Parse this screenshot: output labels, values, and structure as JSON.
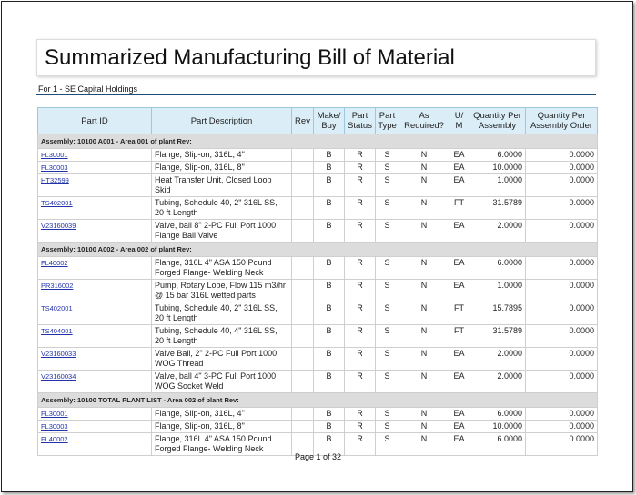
{
  "title": "Summarized Manufacturing Bill of Material",
  "for_line": "For  1 - SE Capital Holdings",
  "columns": [
    "Part ID",
    "Part Description",
    "Rev",
    "Make/ Buy",
    "Part Status",
    "Part Type",
    "As Required?",
    "U/ M",
    "Quantity Per Assembly",
    "Quantity Per Assembly Order"
  ],
  "assemblies": [
    {
      "label": "Assembly:  10100 A001 - Area 001 of plant     Rev:",
      "rows": [
        [
          "FL30001",
          "Flange, Slip-on, 316L, 4\"",
          "",
          "B",
          "R",
          "S",
          "N",
          "EA",
          "6.0000",
          "0.0000"
        ],
        [
          "FL30003",
          "Flange, Slip-on, 316L, 8\"",
          "",
          "B",
          "R",
          "S",
          "N",
          "EA",
          "10.0000",
          "0.0000"
        ],
        [
          "HT32599",
          "Heat Transfer Unit, Closed Loop Skid",
          "",
          "B",
          "R",
          "S",
          "N",
          "EA",
          "1.0000",
          "0.0000"
        ],
        [
          "TS402001",
          "Tubing, Schedule 40, 2\" 316L SS, 20 ft Length",
          "",
          "B",
          "R",
          "S",
          "N",
          "FT",
          "31.5789",
          "0.0000"
        ],
        [
          "V23160039",
          "Valve, ball 8\" 2-PC Full Port 1000 Flange Ball Valve",
          "",
          "B",
          "R",
          "S",
          "N",
          "EA",
          "2.0000",
          "0.0000"
        ]
      ]
    },
    {
      "label": "Assembly:  10100 A002 - Area 002 of plant     Rev:",
      "rows": [
        [
          "FL40002",
          "Flange, 316L 4\" ASA 150 Pound Forged Flange- Welding Neck",
          "",
          "B",
          "R",
          "S",
          "N",
          "EA",
          "6.0000",
          "0.0000"
        ],
        [
          "PR316002",
          "Pump, Rotary Lobe, Flow 115 m3/hr @ 15 bar 316L wetted parts",
          "",
          "B",
          "R",
          "S",
          "N",
          "EA",
          "1.0000",
          "0.0000"
        ],
        [
          "TS402001",
          "Tubing, Schedule 40, 2\" 316L SS, 20 ft Length",
          "",
          "B",
          "R",
          "S",
          "N",
          "FT",
          "15.7895",
          "0.0000"
        ],
        [
          "TS404001",
          "Tubing, Schedule 40, 4\" 316L SS, 20 ft Length",
          "",
          "B",
          "R",
          "S",
          "N",
          "FT",
          "31.5789",
          "0.0000"
        ],
        [
          "V23160033",
          "Valve Ball, 2\" 2-PC Full Port 1000 WOG Thread",
          "",
          "B",
          "R",
          "S",
          "N",
          "EA",
          "2.0000",
          "0.0000"
        ],
        [
          "V23160034",
          "Valve, ball 4\" 3-PC Full Port 1000 WOG Socket Weld",
          "",
          "B",
          "R",
          "S",
          "N",
          "EA",
          "2.0000",
          "0.0000"
        ]
      ]
    },
    {
      "label": "Assembly:  10100 TOTAL PLANT LIST - Area 002 of plant     Rev:",
      "rows": [
        [
          "FL30001",
          "Flange, Slip-on, 316L, 4\"",
          "",
          "B",
          "R",
          "S",
          "N",
          "EA",
          "6.0000",
          "0.0000"
        ],
        [
          "FL30003",
          "Flange, Slip-on, 316L, 8\"",
          "",
          "B",
          "R",
          "S",
          "N",
          "EA",
          "10.0000",
          "0.0000"
        ],
        [
          "FL40002",
          "Flange, 316L 4\" ASA 150 Pound Forged Flange- Welding Neck",
          "",
          "B",
          "R",
          "S",
          "N",
          "EA",
          "6.0000",
          "0.0000"
        ]
      ]
    }
  ],
  "pager": "Page 1 of 32"
}
